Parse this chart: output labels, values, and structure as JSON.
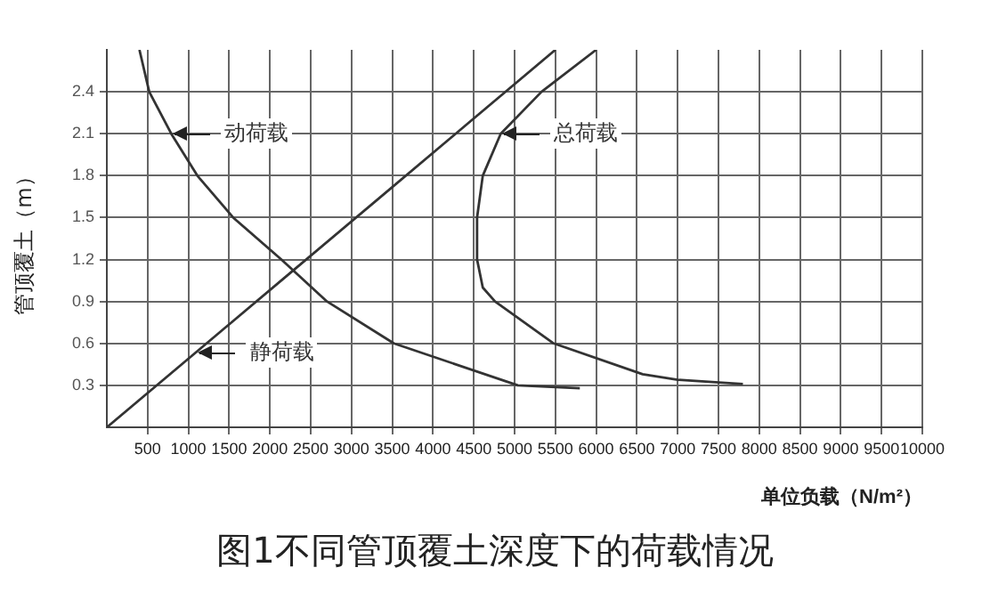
{
  "chart_data": {
    "type": "line",
    "title": "图1不同管顶覆土深度下的荷载情况",
    "xlabel": "单位负载（N/m²）",
    "ylabel": "管顶覆土（m）",
    "xlim": [
      0,
      10000
    ],
    "xticks": [
      500,
      1000,
      1500,
      2000,
      2500,
      3000,
      3500,
      4000,
      4500,
      5000,
      5500,
      6000,
      6500,
      7000,
      7500,
      8000,
      8500,
      9000,
      9500,
      10000
    ],
    "ylim": [
      0,
      2.7
    ],
    "yticks": [
      0.3,
      0.6,
      0.9,
      1.2,
      1.5,
      1.8,
      2.1,
      2.4
    ],
    "series": [
      {
        "name": "动荷载",
        "color": "#333333",
        "x": [
          400,
          520,
          790,
          1110,
          1550,
          2140,
          2700,
          3520,
          5040,
          5800
        ],
        "values": [
          2.7,
          2.4,
          2.1,
          1.8,
          1.5,
          1.2,
          0.9,
          0.6,
          0.3,
          0.28
        ]
      },
      {
        "name": "静荷载",
        "color": "#333333",
        "x": [
          0,
          1100,
          2200,
          3300,
          4400,
          5500
        ],
        "values": [
          0,
          0.54,
          1.08,
          1.62,
          2.16,
          2.7
        ]
      },
      {
        "name": "总荷载",
        "color": "#333333",
        "x": [
          6000,
          5330,
          4830,
          4610,
          4540,
          4540,
          4610,
          4760,
          5480,
          6570,
          7000,
          7800
        ],
        "values": [
          2.7,
          2.4,
          2.1,
          1.8,
          1.5,
          1.2,
          1.0,
          0.9,
          0.6,
          0.38,
          0.34,
          0.31
        ]
      }
    ],
    "grid": true,
    "legend": false,
    "marker": "none",
    "line_style": "solid"
  }
}
